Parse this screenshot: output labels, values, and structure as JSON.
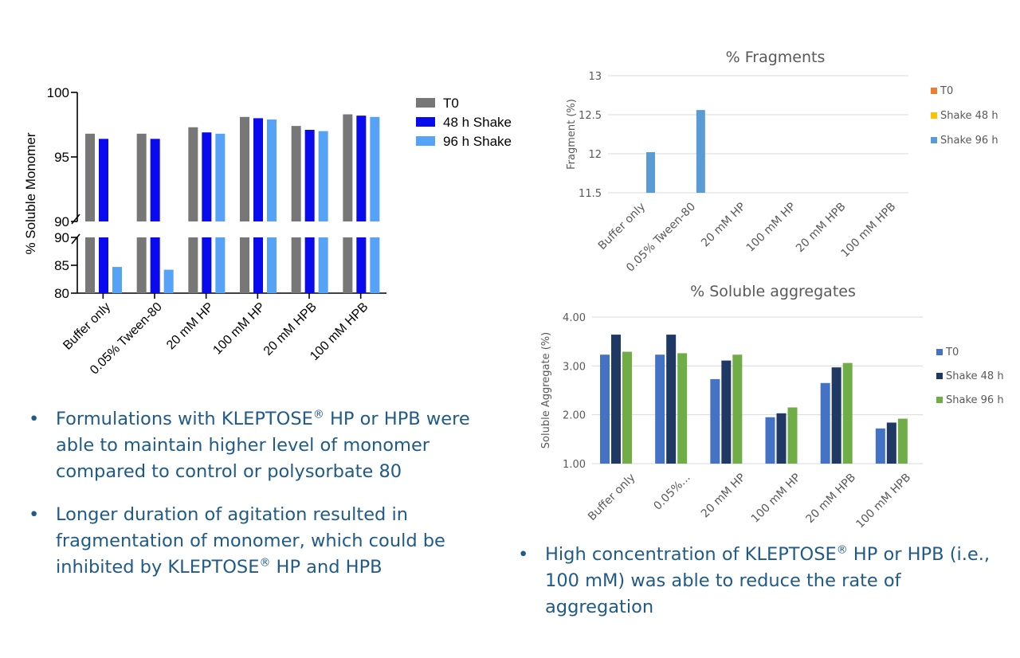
{
  "chart_data": [
    {
      "type": "bar",
      "title": "",
      "ylabel": "% Soluble Monomer",
      "xlabel": "",
      "axis_break": true,
      "upper_ylim": [
        90,
        100
      ],
      "lower_ylim": [
        80,
        90
      ],
      "upper_ticks": [
        "100",
        "95",
        "90"
      ],
      "lower_ticks": [
        "90",
        "85",
        "80"
      ],
      "categories": [
        "Buffer only",
        "0.05% Tween-80",
        "20 mM HP",
        "100 mM HP",
        "20 mM HPB",
        "100 mM HPB"
      ],
      "series": [
        {
          "name": "T0",
          "color": "#777777",
          "values": [
            96.8,
            96.8,
            97.3,
            98.1,
            97.4,
            98.3
          ]
        },
        {
          "name": "48 h Shake",
          "color": "#0a0aee",
          "values": [
            96.4,
            96.4,
            96.9,
            98.0,
            97.1,
            98.2
          ]
        },
        {
          "name": "96 h Shake",
          "color": "#55a2f7",
          "values": [
            84.7,
            84.2,
            96.8,
            97.9,
            97.0,
            98.1
          ]
        }
      ],
      "legend_position": "top-right"
    },
    {
      "type": "bar",
      "title": "% Fragments",
      "ylabel": "Fragment (%)",
      "xlabel": "",
      "ylim": [
        11.5,
        13
      ],
      "yticks": [
        "13",
        "12.5",
        "12",
        "11.5"
      ],
      "categories": [
        "Buffer only",
        "0.05% Tween-80",
        "20 mM HP",
        "100 mM HP",
        "20 mM HPB",
        "100 mM HPB"
      ],
      "series": [
        {
          "name": "T0",
          "color": "#ed7d31",
          "values": [
            null,
            null,
            null,
            null,
            null,
            null
          ]
        },
        {
          "name": "Shake 48 h",
          "color": "#ffc000",
          "values": [
            null,
            null,
            null,
            null,
            null,
            null
          ]
        },
        {
          "name": "Shake 96 h",
          "color": "#5b9bd5",
          "values": [
            12.02,
            12.56,
            null,
            null,
            null,
            null
          ]
        }
      ],
      "legend_position": "right"
    },
    {
      "type": "bar",
      "title": "% Soluble aggregates",
      "ylabel": "Soluble Aggregate (%)",
      "xlabel": "",
      "ylim": [
        1,
        4
      ],
      "yticks": [
        "4.00",
        "3.00",
        "2.00",
        "1.00"
      ],
      "categories": [
        "Buffer only",
        "0.05%...",
        "20 mM HP",
        "100 mM HP",
        "20 mM HPB",
        "100 mM HPB"
      ],
      "series": [
        {
          "name": "T0",
          "color": "#4472c4",
          "values": [
            3.23,
            3.23,
            2.73,
            1.95,
            2.65,
            1.72
          ]
        },
        {
          "name": "Shake 48 h",
          "color": "#203864",
          "values": [
            3.64,
            3.64,
            3.11,
            2.03,
            2.97,
            1.84
          ]
        },
        {
          "name": "Shake 96 h",
          "color": "#70ad47",
          "values": [
            3.29,
            3.26,
            3.23,
            2.15,
            3.06,
            1.92
          ]
        }
      ],
      "legend_position": "right"
    }
  ],
  "bullets_left": [
    {
      "marker": "•",
      "parts": [
        "Formulations with KLEPTOSE",
        "®",
        " HP or HPB were able to maintain higher level of monomer compared to control or polysorbate 80"
      ]
    },
    {
      "marker": "•",
      "parts": [
        "Longer duration of agitation resulted in fragmentation of monomer, which could be inhibited by KLEPTOSE",
        "®",
        " HP and HPB"
      ]
    }
  ],
  "bullets_right": [
    {
      "marker": "•",
      "parts": [
        "High concentration of KLEPTOSE",
        "®",
        " HP or HPB (i.e., 100 mM) was able to reduce the rate of aggregation"
      ]
    }
  ]
}
